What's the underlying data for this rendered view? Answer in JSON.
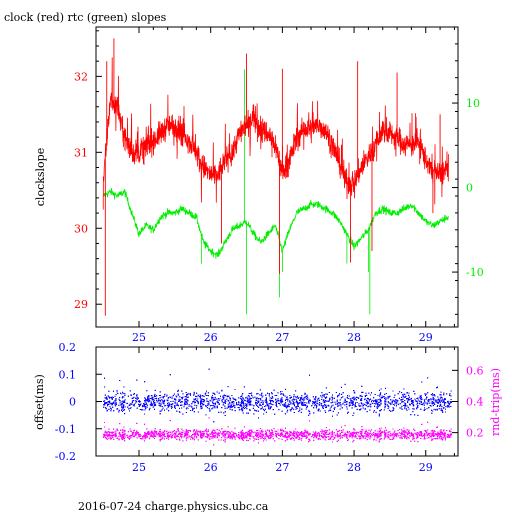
{
  "footer": "2016-07-24 charge.physics.ubc.ca",
  "colors": {
    "clock": "#ff0000",
    "rtc": "#00ee00",
    "offset": "#0000ff",
    "rtt": "#ff00ff",
    "axis": "#000000"
  },
  "chart_data": [
    {
      "type": "line",
      "title": "clock (red) rtc (green) slopes",
      "ylabel_left": "clockslope",
      "xlim": [
        24.4,
        29.45
      ],
      "ylim_left": [
        28.7,
        32.65
      ],
      "ylim_right": [
        -16.5,
        19
      ],
      "x_ticks": [
        25,
        26,
        27,
        28,
        29
      ],
      "y_ticks_left": [
        29,
        30,
        31,
        32
      ],
      "y_ticks_right": [
        -10,
        0,
        10
      ],
      "series": [
        {
          "axis": "left",
          "color": "#ff0000",
          "x": [
            24.5,
            24.6,
            24.7,
            24.8,
            24.9,
            25.0,
            25.1,
            25.2,
            25.3,
            25.4,
            25.5,
            25.6,
            25.7,
            25.8,
            25.9,
            26.0,
            26.1,
            26.2,
            26.3,
            26.4,
            26.5,
            26.6,
            26.7,
            26.8,
            26.9,
            27.0,
            27.1,
            27.2,
            27.3,
            27.4,
            27.5,
            27.6,
            27.7,
            27.8,
            27.9,
            28.0,
            28.1,
            28.2,
            28.3,
            28.4,
            28.5,
            28.6,
            28.7,
            28.8,
            28.9,
            29.0,
            29.1,
            29.2,
            29.3
          ],
          "y": [
            30.6,
            31.7,
            31.6,
            31.2,
            31.0,
            31.0,
            31.1,
            31.15,
            31.25,
            31.35,
            31.35,
            31.3,
            31.15,
            31.0,
            30.8,
            30.7,
            30.7,
            30.9,
            31.0,
            31.25,
            31.35,
            31.5,
            31.3,
            31.25,
            31.1,
            30.75,
            30.9,
            31.2,
            31.3,
            31.3,
            31.35,
            31.3,
            31.1,
            30.85,
            30.6,
            30.6,
            30.8,
            30.95,
            31.1,
            31.3,
            31.25,
            31.2,
            31.1,
            31.1,
            31.15,
            30.9,
            30.75,
            30.7,
            30.8
          ]
        },
        {
          "axis": "right",
          "color": "#00ee00",
          "x": [
            24.5,
            24.6,
            24.7,
            24.8,
            24.9,
            25.0,
            25.1,
            25.2,
            25.3,
            25.4,
            25.5,
            25.6,
            25.7,
            25.8,
            25.9,
            26.0,
            26.1,
            26.2,
            26.3,
            26.4,
            26.5,
            26.6,
            26.7,
            26.8,
            26.9,
            27.0,
            27.1,
            27.2,
            27.3,
            27.4,
            27.5,
            27.6,
            27.7,
            27.8,
            27.9,
            28.0,
            28.1,
            28.2,
            28.3,
            28.4,
            28.5,
            28.6,
            28.7,
            28.8,
            28.9,
            29.0,
            29.1,
            29.2,
            29.3
          ],
          "y": [
            -1,
            -0.5,
            -1,
            -0.5,
            -3,
            -5.5,
            -4.5,
            -5,
            -3.5,
            -3,
            -3,
            -2.5,
            -3,
            -3.5,
            -6.5,
            -7.5,
            -8,
            -6.5,
            -5,
            -4.5,
            -4,
            -5.5,
            -6.5,
            -5.5,
            -4.5,
            -7.5,
            -5,
            -3,
            -2.5,
            -2,
            -2,
            -2.5,
            -3,
            -4,
            -5.5,
            -7,
            -6,
            -5,
            -3,
            -2.5,
            -3,
            -3,
            -2.5,
            -2,
            -3,
            -4,
            -4.5,
            -4,
            -3.5
          ]
        }
      ]
    },
    {
      "type": "scatter",
      "ylabel_left": "offset(ms)",
      "ylabel_right": "rnd-trip(ms)",
      "xlim": [
        24.4,
        29.45
      ],
      "ylim_left": [
        -0.2,
        0.2
      ],
      "ylim_right": [
        0.05,
        0.75
      ],
      "x_ticks": [
        25,
        26,
        27,
        28,
        29
      ],
      "y_ticks_left": [
        -0.2,
        -0.1,
        0,
        0.1,
        0.2
      ],
      "y_ticks_right": [
        0.2,
        0.4,
        0.6
      ],
      "y_tick_labels_left": [
        "-0.2",
        "-0.1",
        "0",
        "0.1",
        "0.2"
      ],
      "y_tick_labels_right": [
        "0.2",
        "0.4",
        "0.6"
      ],
      "series": [
        {
          "name": "offset",
          "axis": "left",
          "color": "#0000ff",
          "x_range": [
            24.5,
            29.35
          ],
          "center": 0.0,
          "spread": 0.05
        },
        {
          "name": "rnd-trip",
          "axis": "right",
          "color": "#ff00ff",
          "x_range": [
            24.5,
            29.35
          ],
          "center": 0.19,
          "spread": 0.045
        }
      ]
    }
  ]
}
